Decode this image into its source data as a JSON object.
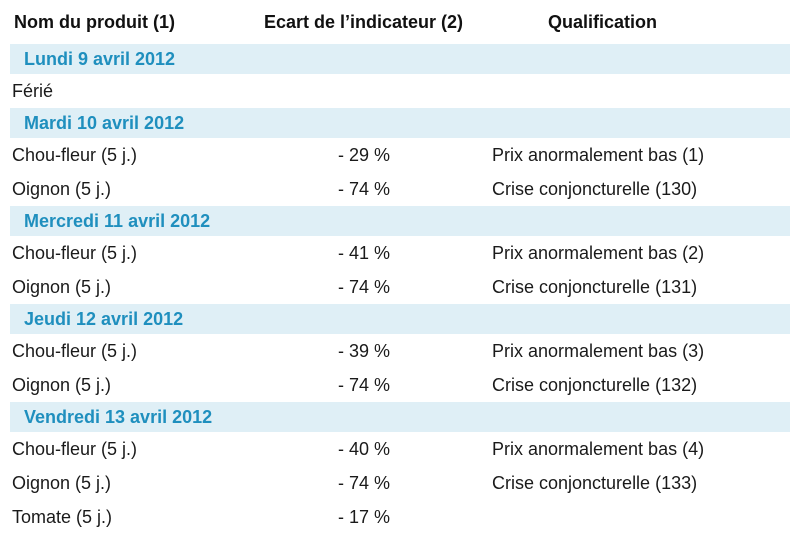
{
  "header": {
    "col_product": "Nom du produit (1)",
    "col_gap": "Ecart de l’indicateur (2)",
    "col_qualification": "Qualification"
  },
  "days": [
    {
      "label": "Lundi 9 avril 2012",
      "rows": [
        {
          "product": "Férié",
          "gap": "",
          "qualification": ""
        }
      ]
    },
    {
      "label": "Mardi 10 avril 2012",
      "rows": [
        {
          "product": "Chou-fleur (5 j.)",
          "gap": "- 29 %",
          "qualification": "Prix anormalement bas (1)"
        },
        {
          "product": "Oignon (5 j.)",
          "gap": "- 74 %",
          "qualification": "Crise conjoncturelle (130)"
        }
      ]
    },
    {
      "label": "Mercredi 11 avril 2012",
      "rows": [
        {
          "product": "Chou-fleur (5 j.)",
          "gap": "- 41 %",
          "qualification": "Prix anormalement bas (2)"
        },
        {
          "product": "Oignon (5 j.)",
          "gap": "- 74 %",
          "qualification": "Crise conjoncturelle (131)"
        }
      ]
    },
    {
      "label": "Jeudi 12 avril 2012",
      "rows": [
        {
          "product": "Chou-fleur (5 j.)",
          "gap": "- 39 %",
          "qualification": "Prix anormalement bas (3)"
        },
        {
          "product": "Oignon (5 j.)",
          "gap": "- 74 %",
          "qualification": "Crise conjoncturelle (132)"
        }
      ]
    },
    {
      "label": "Vendredi 13 avril 2012",
      "rows": [
        {
          "product": "Chou-fleur (5 j.)",
          "gap": "- 40 %",
          "qualification": "Prix anormalement bas (4)"
        },
        {
          "product": "Oignon (5 j.)",
          "gap": "- 74 %",
          "qualification": "Crise conjoncturelle (133)"
        },
        {
          "product": "Tomate (5 j.)",
          "gap": "- 17 %",
          "qualification": ""
        }
      ]
    }
  ]
}
